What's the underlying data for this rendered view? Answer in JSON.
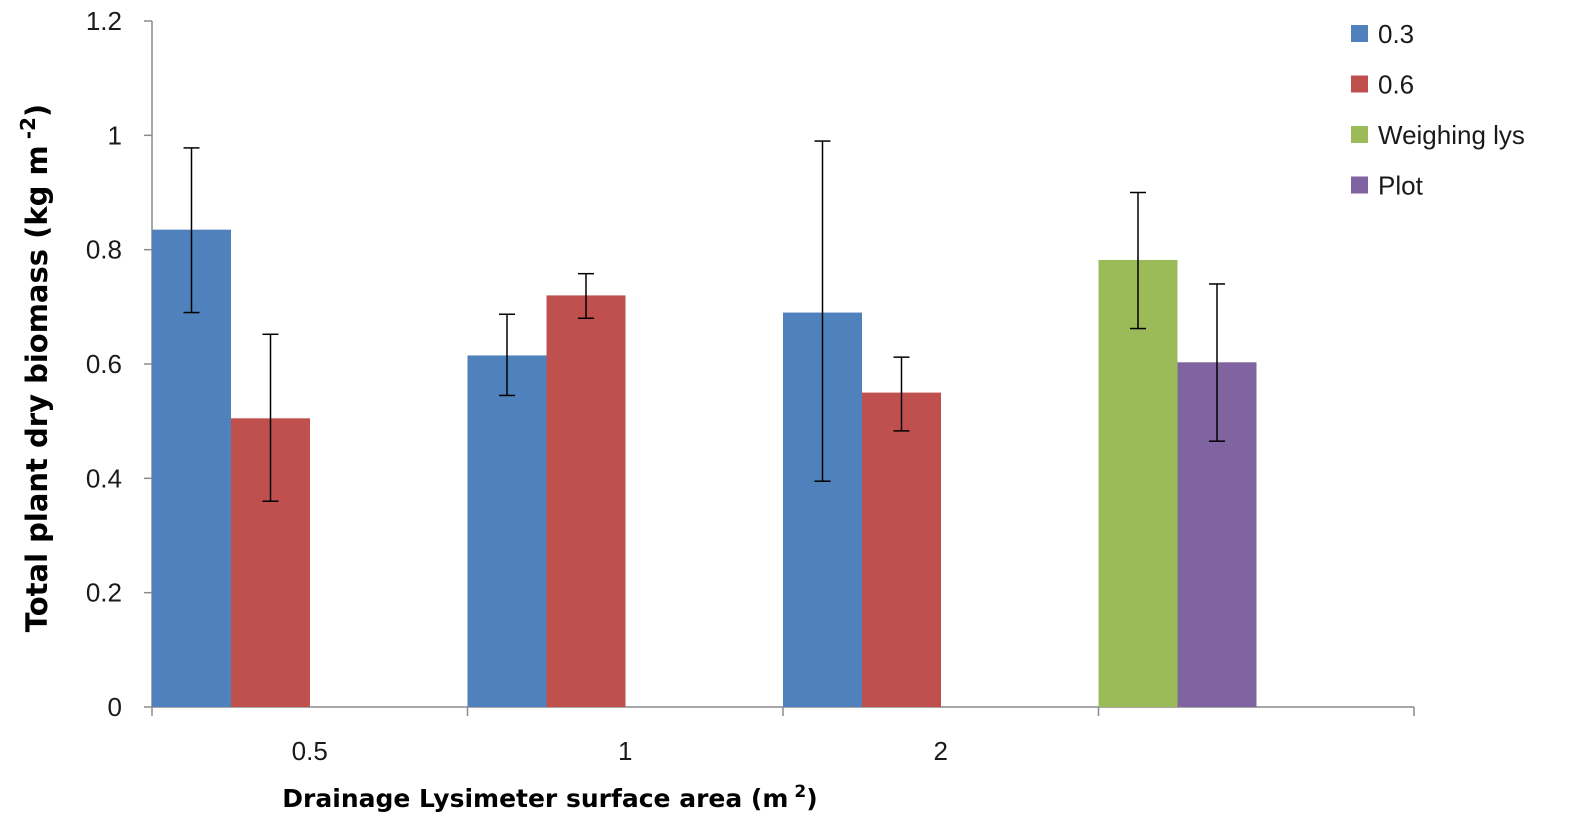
{
  "chart_data": {
    "type": "bar",
    "title": "",
    "xlabel": "Drainage Lysimeter surface area (m",
    "xlabel_sup": "2",
    "xlabel_tail": ")",
    "ylabel": "Total plant dry biomass (kg m",
    "ylabel_sup": "-2",
    "ylabel_tail": ")",
    "ylim": [
      0,
      1.2
    ],
    "yticks": [
      "0",
      "0.2",
      "0.4",
      "0.6",
      "0.8",
      "1",
      "1.2"
    ],
    "ytick_values": [
      0,
      0.2,
      0.4,
      0.6,
      0.8,
      1.0,
      1.2
    ],
    "categories": [
      "0.5",
      "1",
      "2",
      ""
    ],
    "grid": false,
    "legend_position": "top-right",
    "series": [
      {
        "name": "0.3",
        "color": "#4f81bd",
        "values": [
          0.835,
          0.615,
          0.69,
          null
        ],
        "err_low": [
          0.69,
          0.545,
          0.395,
          null
        ],
        "err_high": [
          0.978,
          0.687,
          0.99,
          null
        ]
      },
      {
        "name": "0.6",
        "color": "#c0504d",
        "values": [
          0.505,
          0.72,
          0.55,
          null
        ],
        "err_low": [
          0.36,
          0.68,
          0.483,
          null
        ],
        "err_high": [
          0.652,
          0.758,
          0.612,
          null
        ]
      },
      {
        "name": "Weighing lys",
        "color": "#9bbb59",
        "values": [
          null,
          null,
          null,
          0.782
        ],
        "err_low": [
          null,
          null,
          null,
          0.662
        ],
        "err_high": [
          null,
          null,
          null,
          0.9
        ]
      },
      {
        "name": "Plot",
        "color": "#8064a2",
        "values": [
          null,
          null,
          null,
          0.603
        ],
        "err_low": [
          null,
          null,
          null,
          0.465
        ],
        "err_high": [
          null,
          null,
          null,
          0.74
        ]
      }
    ]
  }
}
